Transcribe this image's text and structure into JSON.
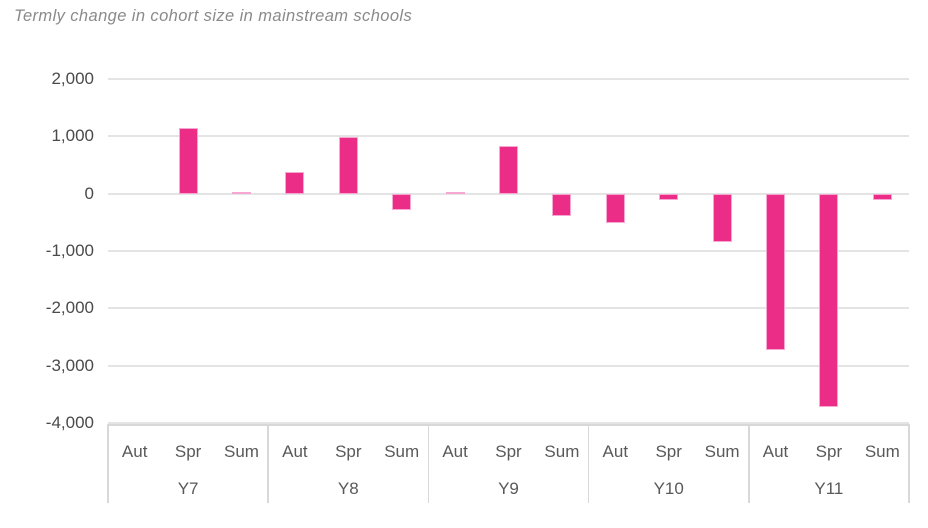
{
  "title": "Termly change in cohort size in mainstream schools",
  "colors": {
    "bar": "#EC2D87",
    "bar_border": "#F6A8D2",
    "gridline": "#E4E4E4",
    "y_label_text": "#4A4A4A",
    "category_text": "#595959",
    "title_text": "#8A8A8A",
    "divider": "#D8D8D8",
    "background": "#FFFFFF"
  },
  "chart_data": {
    "type": "bar",
    "title": "Termly change in cohort size in mainstream schools",
    "xlabel": "",
    "ylabel": "",
    "ylim": [
      -4000,
      2000
    ],
    "y_ticks": [
      2000,
      1000,
      0,
      -1000,
      -2000,
      -3000,
      -4000
    ],
    "y_tick_labels": [
      "2,000",
      "1,000",
      "0",
      "-1,000",
      "-2,000",
      "-3,000",
      "-4,000"
    ],
    "grid": true,
    "legend": false,
    "term_labels": [
      "Aut",
      "Spr",
      "Sum"
    ],
    "groups": [
      {
        "label": "Y7",
        "values": [
          0,
          1150,
          30
        ]
      },
      {
        "label": "Y8",
        "values": [
          380,
          990,
          -280
        ]
      },
      {
        "label": "Y9",
        "values": [
          30,
          830,
          -390
        ]
      },
      {
        "label": "Y10",
        "values": [
          -520,
          -110,
          -850
        ]
      },
      {
        "label": "Y11",
        "values": [
          -2730,
          -3720,
          -110
        ]
      }
    ]
  }
}
